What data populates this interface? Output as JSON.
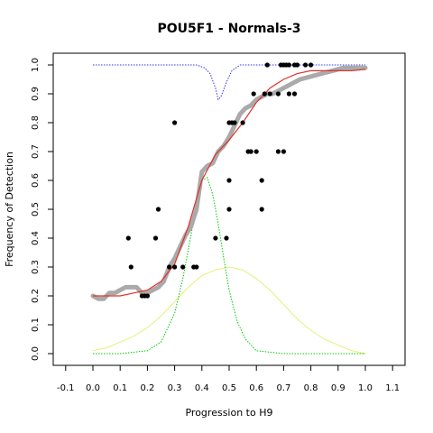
{
  "chart_data": {
    "type": "scatter",
    "title": "POU5F1 - Normals-3",
    "xlabel": "Progression to H9",
    "ylabel": "Frequency of Detection",
    "xlim": [
      -0.1,
      1.1
    ],
    "ylim": [
      0.0,
      1.0
    ],
    "xticks": [
      "-0.1",
      "0.0",
      "0.1",
      "0.2",
      "0.3",
      "0.4",
      "0.5",
      "0.6",
      "0.7",
      "0.8",
      "0.9",
      "1.0",
      "1.1"
    ],
    "yticks": [
      "0.0",
      "0.1",
      "0.2",
      "0.3",
      "0.4",
      "0.5",
      "0.6",
      "0.7",
      "0.8",
      "0.9",
      "1.0"
    ],
    "grid": false,
    "legend": "none",
    "colors": {
      "observed": "#000000",
      "smoothed": "#aaaaaa",
      "fit": "#e0302a",
      "narrow_density": "#00cc00",
      "wide_density": "#e6f07a",
      "dip": "#3333ee"
    },
    "series": [
      {
        "kind": "points",
        "x": [
          0.13,
          0.14,
          0.18,
          0.19,
          0.2,
          0.23,
          0.24,
          0.28,
          0.3,
          0.3,
          0.33,
          0.37,
          0.38,
          0.45,
          0.49,
          0.5,
          0.5,
          0.5,
          0.51,
          0.52,
          0.55,
          0.57,
          0.58,
          0.59,
          0.6,
          0.62,
          0.62,
          0.63,
          0.64,
          0.65,
          0.68,
          0.68,
          0.69,
          0.7,
          0.7,
          0.71,
          0.72,
          0.72,
          0.74,
          0.74,
          0.75,
          0.78,
          0.8
        ],
        "y": [
          0.4,
          0.3,
          0.2,
          0.2,
          0.2,
          0.4,
          0.5,
          0.3,
          0.8,
          0.3,
          0.3,
          0.3,
          0.3,
          0.4,
          0.4,
          0.6,
          0.5,
          0.8,
          0.8,
          0.8,
          0.8,
          0.7,
          0.7,
          0.9,
          0.7,
          0.5,
          0.6,
          0.9,
          1.0,
          0.9,
          0.7,
          0.9,
          1.0,
          0.7,
          1.0,
          1.0,
          1.0,
          0.9,
          1.0,
          0.9,
          1.0,
          1.0,
          1.0
        ]
      },
      {
        "kind": "running_mean",
        "x": [
          0.0,
          0.02,
          0.04,
          0.06,
          0.08,
          0.1,
          0.12,
          0.14,
          0.16,
          0.18,
          0.2,
          0.22,
          0.24,
          0.26,
          0.28,
          0.3,
          0.32,
          0.34,
          0.36,
          0.38,
          0.4,
          0.42,
          0.44,
          0.46,
          0.48,
          0.5,
          0.52,
          0.54,
          0.56,
          0.58,
          0.6,
          0.62,
          0.64,
          0.66,
          0.68,
          0.7,
          0.72,
          0.74,
          0.76,
          0.8,
          0.84,
          0.88,
          0.92,
          0.96,
          1.0
        ],
        "y": [
          0.2,
          0.19,
          0.19,
          0.21,
          0.21,
          0.22,
          0.23,
          0.23,
          0.23,
          0.21,
          0.21,
          0.22,
          0.23,
          0.25,
          0.3,
          0.33,
          0.37,
          0.41,
          0.44,
          0.5,
          0.63,
          0.65,
          0.66,
          0.7,
          0.72,
          0.75,
          0.79,
          0.83,
          0.85,
          0.86,
          0.88,
          0.89,
          0.9,
          0.9,
          0.91,
          0.92,
          0.93,
          0.94,
          0.95,
          0.96,
          0.97,
          0.98,
          0.99,
          0.99,
          0.99
        ]
      },
      {
        "kind": "fit",
        "x": [
          0.0,
          0.05,
          0.1,
          0.15,
          0.2,
          0.25,
          0.3,
          0.35,
          0.4,
          0.45,
          0.5,
          0.55,
          0.6,
          0.65,
          0.7,
          0.75,
          0.8,
          0.85,
          0.9,
          0.95,
          1.0
        ],
        "y": [
          0.2,
          0.2,
          0.2,
          0.21,
          0.22,
          0.25,
          0.31,
          0.44,
          0.6,
          0.69,
          0.74,
          0.8,
          0.87,
          0.92,
          0.95,
          0.97,
          0.98,
          0.98,
          0.98,
          0.98,
          0.985
        ]
      },
      {
        "kind": "narrow_density",
        "x": [
          0.0,
          0.1,
          0.2,
          0.25,
          0.3,
          0.33,
          0.36,
          0.38,
          0.4,
          0.42,
          0.44,
          0.46,
          0.48,
          0.5,
          0.53,
          0.56,
          0.6,
          0.7,
          0.8,
          1.0
        ],
        "y": [
          0.0,
          0.0,
          0.01,
          0.04,
          0.14,
          0.26,
          0.41,
          0.52,
          0.6,
          0.61,
          0.55,
          0.45,
          0.33,
          0.22,
          0.11,
          0.05,
          0.01,
          0.0,
          0.0,
          0.0
        ]
      },
      {
        "kind": "wide_density",
        "x": [
          0.0,
          0.05,
          0.1,
          0.15,
          0.2,
          0.25,
          0.3,
          0.35,
          0.4,
          0.45,
          0.5,
          0.55,
          0.6,
          0.65,
          0.7,
          0.75,
          0.8,
          0.85,
          0.9,
          0.95,
          1.0
        ],
        "y": [
          0.01,
          0.02,
          0.04,
          0.06,
          0.09,
          0.13,
          0.18,
          0.23,
          0.27,
          0.29,
          0.3,
          0.29,
          0.26,
          0.22,
          0.17,
          0.12,
          0.08,
          0.05,
          0.03,
          0.01,
          0.0
        ]
      },
      {
        "kind": "dip",
        "x": [
          0.0,
          0.38,
          0.41,
          0.43,
          0.45,
          0.46,
          0.47,
          0.49,
          0.51,
          0.54,
          1.0
        ],
        "y": [
          1.0,
          1.0,
          0.99,
          0.97,
          0.92,
          0.88,
          0.89,
          0.94,
          0.98,
          1.0,
          1.0
        ]
      }
    ]
  }
}
